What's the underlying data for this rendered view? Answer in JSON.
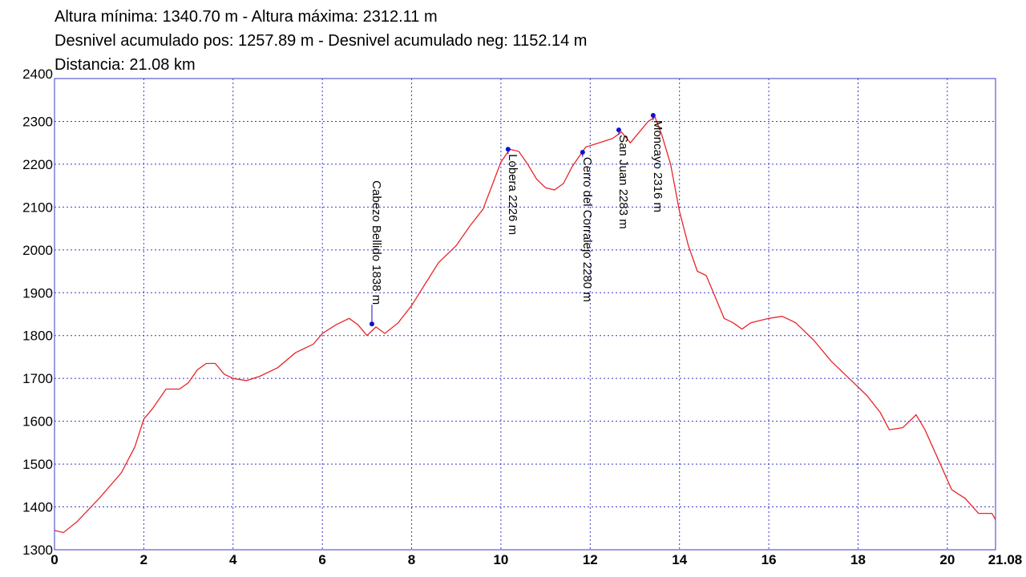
{
  "chart_data": {
    "type": "line",
    "title_lines": [
      "Altura mínima: 1340.70 m - Altura máxima: 2312.11 m",
      "Desnivel acumulado pos: 1257.89 m - Desnivel acumulado neg: 1152.14 m",
      "Distancia: 21.08 km"
    ],
    "xlim": [
      0,
      21.08
    ],
    "ylim": [
      1300,
      2400
    ],
    "xticks": [
      0,
      2,
      4,
      6,
      8,
      10,
      12,
      14,
      16,
      18,
      20,
      21.08
    ],
    "yticks": [
      1300,
      1400,
      1500,
      1600,
      1700,
      1800,
      1900,
      2000,
      2100,
      2200,
      2300,
      2400
    ],
    "grid": true,
    "series": [
      {
        "color": "#e8262a",
        "x": [
          0,
          0.2,
          0.5,
          1.0,
          1.5,
          1.8,
          2.0,
          2.2,
          2.5,
          2.8,
          3.0,
          3.2,
          3.4,
          3.6,
          3.8,
          4.0,
          4.3,
          4.6,
          5.0,
          5.4,
          5.8,
          6.0,
          6.3,
          6.6,
          6.8,
          7.0,
          7.2,
          7.4,
          7.7,
          8.0,
          8.3,
          8.6,
          9.0,
          9.3,
          9.6,
          9.8,
          10.0,
          10.2,
          10.4,
          10.6,
          10.8,
          11.0,
          11.2,
          11.4,
          11.6,
          11.8,
          11.9,
          12.2,
          12.5,
          12.7,
          12.9,
          13.1,
          13.3,
          13.45,
          13.6,
          13.8,
          14.0,
          14.2,
          14.4,
          14.6,
          14.8,
          15.0,
          15.2,
          15.4,
          15.6,
          15.8,
          16.0,
          16.3,
          16.6,
          17.0,
          17.4,
          17.8,
          18.2,
          18.5,
          18.7,
          19.0,
          19.3,
          19.5,
          19.8,
          20.1,
          20.4,
          20.7,
          21.0,
          21.08
        ],
        "values": [
          1345,
          1340,
          1365,
          1420,
          1480,
          1540,
          1605,
          1630,
          1675,
          1675,
          1690,
          1720,
          1735,
          1735,
          1710,
          1700,
          1695,
          1705,
          1725,
          1760,
          1780,
          1805,
          1825,
          1840,
          1825,
          1800,
          1820,
          1805,
          1830,
          1870,
          1920,
          1970,
          2010,
          2055,
          2095,
          2150,
          2205,
          2235,
          2230,
          2200,
          2165,
          2145,
          2140,
          2155,
          2195,
          2225,
          2240,
          2250,
          2260,
          2275,
          2250,
          2275,
          2300,
          2310,
          2270,
          2200,
          2090,
          2010,
          1950,
          1940,
          1890,
          1840,
          1830,
          1815,
          1830,
          1835,
          1840,
          1845,
          1830,
          1790,
          1740,
          1700,
          1660,
          1620,
          1580,
          1585,
          1615,
          1580,
          1510,
          1440,
          1420,
          1385,
          1385,
          1370
        ]
      }
    ],
    "annotations": [
      {
        "label": "Cabezo Bellido 1838 m",
        "x": 7.11,
        "y": 1827
      },
      {
        "label": "Lobera 2226 m",
        "x": 10.16,
        "y": 2235
      },
      {
        "label": "Cerro del Corralejo 2280 m",
        "x": 11.83,
        "y": 2228
      },
      {
        "label": "San Juan 2283 m",
        "x": 12.64,
        "y": 2280
      },
      {
        "label": "Moncayo 2316 m",
        "x": 13.41,
        "y": 2314
      }
    ]
  }
}
